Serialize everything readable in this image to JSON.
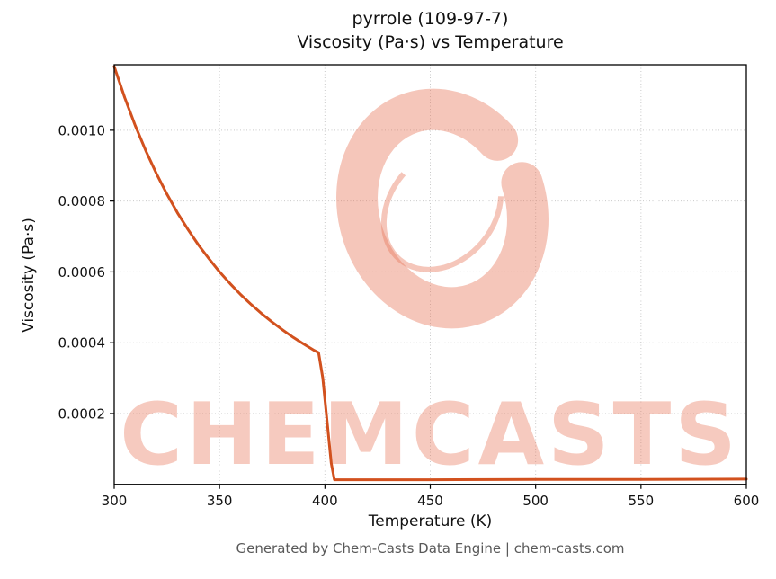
{
  "header": {
    "title_line1": "pyrrole (109-97-7)",
    "title_line2": "Viscosity (Pa·s) vs Temperature"
  },
  "footer": {
    "text": "Generated by Chem-Casts Data Engine | chem-casts.com"
  },
  "watermark": {
    "text": "CHEMCASTS",
    "color": "#e8765a",
    "text_opacity": 0.38,
    "logo_opacity": 0.42
  },
  "chart_data": {
    "type": "line",
    "title": "pyrrole (109-97-7)\nViscosity (Pa·s) vs Temperature",
    "xlabel": "Temperature (K)",
    "ylabel": "Viscosity (Pa·s)",
    "xlim": [
      300,
      600
    ],
    "ylim": [
      0,
      0.001185
    ],
    "x_ticks": [
      300,
      350,
      400,
      450,
      500,
      550,
      600
    ],
    "x_tick_labels": [
      "300",
      "350",
      "400",
      "450",
      "500",
      "550",
      "600"
    ],
    "y_ticks": [
      0.0002,
      0.0004,
      0.0006,
      0.0008,
      0.001
    ],
    "y_tick_labels": [
      "0.0002",
      "0.0004",
      "0.0006",
      "0.0008",
      "0.0010"
    ],
    "grid": true,
    "legend": false,
    "line_color": "#d2511e",
    "line_width": 3,
    "series": [
      {
        "name": "viscosity",
        "points": [
          [
            300,
            0.00118
          ],
          [
            305,
            0.001092
          ],
          [
            310,
            0.001013
          ],
          [
            315,
            0.000942
          ],
          [
            320,
            0.000878
          ],
          [
            325,
            0.00082
          ],
          [
            330,
            0.000767
          ],
          [
            335,
            0.00072
          ],
          [
            340,
            0.000676
          ],
          [
            345,
            0.000637
          ],
          [
            350,
            0.0006
          ],
          [
            355,
            0.000567
          ],
          [
            360,
            0.000536
          ],
          [
            365,
            0.000508
          ],
          [
            370,
            0.000482
          ],
          [
            375,
            0.000458
          ],
          [
            380,
            0.000436
          ],
          [
            385,
            0.000415
          ],
          [
            390,
            0.000396
          ],
          [
            395,
            0.000378
          ],
          [
            397,
            0.000372
          ],
          [
            399,
            0.0003
          ],
          [
            401,
            0.00018
          ],
          [
            403,
            6e-05
          ],
          [
            404.5,
            1.3e-05
          ],
          [
            420,
            1.3e-05
          ],
          [
            450,
            1.3e-05
          ],
          [
            500,
            1.4e-05
          ],
          [
            550,
            1.4e-05
          ],
          [
            600,
            1.5e-05
          ]
        ]
      }
    ]
  }
}
